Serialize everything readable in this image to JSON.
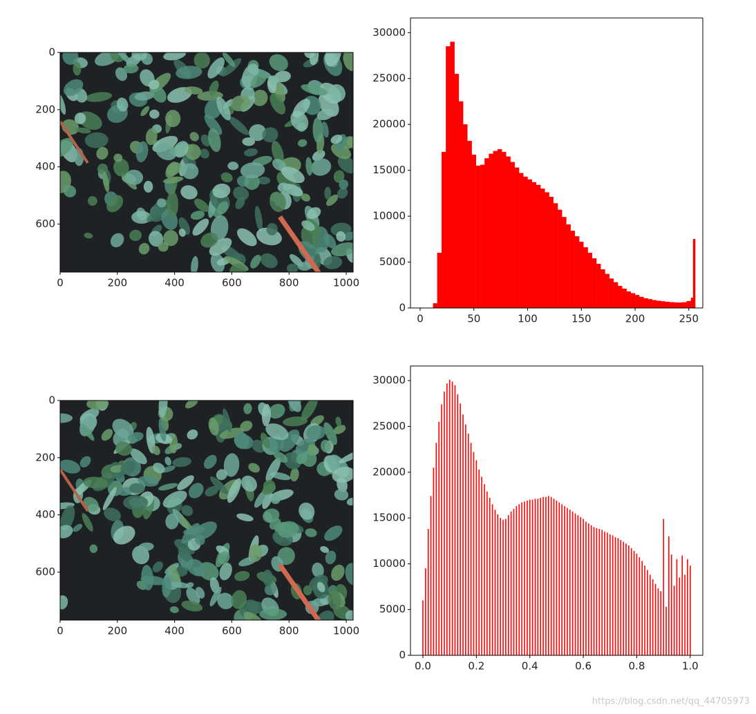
{
  "chart_data": [
    {
      "type": "image",
      "xlim": [
        0,
        1024
      ],
      "ylim": [
        768,
        0
      ],
      "xticks": [
        0,
        200,
        400,
        600,
        800,
        1000
      ],
      "yticks": [
        0,
        200,
        400,
        600
      ]
    },
    {
      "type": "histogram",
      "color": "#ff0000",
      "xlim": [
        -9,
        263
      ],
      "ylim": [
        0,
        31600
      ],
      "xticks": [
        0,
        50,
        100,
        150,
        200,
        250
      ],
      "yticks": [
        0,
        5000,
        10000,
        15000,
        20000,
        25000,
        30000
      ],
      "bins": [
        0,
        4,
        8,
        12,
        16,
        20,
        24,
        28,
        32,
        36,
        40,
        44,
        48,
        52,
        56,
        60,
        64,
        68,
        72,
        76,
        80,
        84,
        88,
        92,
        96,
        100,
        104,
        108,
        112,
        116,
        120,
        124,
        128,
        132,
        136,
        140,
        144,
        148,
        152,
        156,
        160,
        164,
        168,
        172,
        176,
        180,
        184,
        188,
        192,
        196,
        200,
        204,
        208,
        212,
        216,
        220,
        224,
        228,
        232,
        236,
        240,
        244,
        248,
        252,
        254,
        256
      ],
      "values": [
        0,
        0,
        0,
        500,
        6000,
        17000,
        28500,
        29000,
        25500,
        22500,
        20000,
        18200,
        16700,
        15500,
        15600,
        16300,
        16800,
        17100,
        17300,
        17000,
        16500,
        15900,
        15300,
        14700,
        14300,
        14000,
        13700,
        13400,
        13000,
        12600,
        12100,
        11400,
        10700,
        9900,
        9100,
        8400,
        7800,
        7200,
        6600,
        6000,
        5400,
        4800,
        4200,
        3700,
        3200,
        2800,
        2400,
        2100,
        1800,
        1600,
        1400,
        1200,
        1050,
        950,
        850,
        780,
        720,
        670,
        630,
        600,
        590,
        620,
        750,
        1100,
        7500
      ]
    },
    {
      "type": "image",
      "xlim": [
        0,
        1024
      ],
      "ylim": [
        768,
        0
      ],
      "xticks": [
        0,
        200,
        400,
        600,
        800,
        1000
      ],
      "yticks": [
        0,
        200,
        400,
        600
      ]
    },
    {
      "type": "bar",
      "color": "#ff0000",
      "xlim": [
        -0.0465,
        1.047
      ],
      "ylim": [
        0,
        31600
      ],
      "xticks": [
        {
          "value": 0,
          "label": "0.0"
        },
        {
          "value": 0.2,
          "label": "0.2"
        },
        {
          "value": 0.4,
          "label": "0.4"
        },
        {
          "value": 0.6,
          "label": "0.6"
        },
        {
          "value": 0.8,
          "label": "0.8"
        },
        {
          "value": 1,
          "label": "1.0"
        }
      ],
      "yticks": [
        0,
        5000,
        10000,
        15000,
        20000,
        25000,
        30000
      ],
      "x": [
        0,
        0.01,
        0.02,
        0.03,
        0.04,
        0.05,
        0.06,
        0.07,
        0.08,
        0.09,
        0.1,
        0.11,
        0.12,
        0.13,
        0.14,
        0.15,
        0.16,
        0.17,
        0.18,
        0.19,
        0.2,
        0.21,
        0.22,
        0.23,
        0.24,
        0.25,
        0.26,
        0.27,
        0.28,
        0.29,
        0.3,
        0.31,
        0.32,
        0.33,
        0.34,
        0.35,
        0.36,
        0.37,
        0.38,
        0.39,
        0.4,
        0.41,
        0.42,
        0.43,
        0.44,
        0.45,
        0.46,
        0.47,
        0.48,
        0.49,
        0.5,
        0.51,
        0.52,
        0.53,
        0.54,
        0.55,
        0.56,
        0.57,
        0.58,
        0.59,
        0.6,
        0.61,
        0.62,
        0.63,
        0.64,
        0.65,
        0.66,
        0.67,
        0.68,
        0.69,
        0.7,
        0.71,
        0.72,
        0.73,
        0.74,
        0.75,
        0.76,
        0.77,
        0.78,
        0.79,
        0.8,
        0.81,
        0.82,
        0.83,
        0.84,
        0.85,
        0.86,
        0.87,
        0.88,
        0.89,
        0.9,
        0.91,
        0.92,
        0.93,
        0.94,
        0.95,
        0.96,
        0.97,
        0.98,
        0.99,
        1
      ],
      "values": [
        6000,
        9500,
        13800,
        17400,
        20500,
        23200,
        25500,
        27400,
        28800,
        29700,
        30100,
        29900,
        29500,
        28500,
        27500,
        26300,
        25200,
        24200,
        23200,
        22200,
        21300,
        20300,
        19500,
        18700,
        17900,
        17200,
        16500,
        15900,
        15400,
        15000,
        14800,
        14900,
        15300,
        15700,
        16000,
        16300,
        16500,
        16700,
        16800,
        16900,
        17000,
        17000,
        17100,
        17100,
        17200,
        17300,
        17300,
        17400,
        17300,
        17100,
        16900,
        16700,
        16500,
        16300,
        16100,
        15900,
        15700,
        15500,
        15300,
        15100,
        14900,
        14600,
        14400,
        14200,
        14000,
        13900,
        13800,
        13700,
        13500,
        13400,
        13200,
        13100,
        12900,
        12800,
        12600,
        12400,
        12200,
        12000,
        11700,
        11400,
        11100,
        10700,
        10300,
        9800,
        9300,
        8800,
        8300,
        7800,
        7300,
        7000,
        14900,
        5300,
        13000,
        11000,
        7600,
        10500,
        8500,
        10900,
        8800,
        10500,
        9800
      ]
    }
  ],
  "watermark": "https://blog.csdn.net/qq_44705973"
}
